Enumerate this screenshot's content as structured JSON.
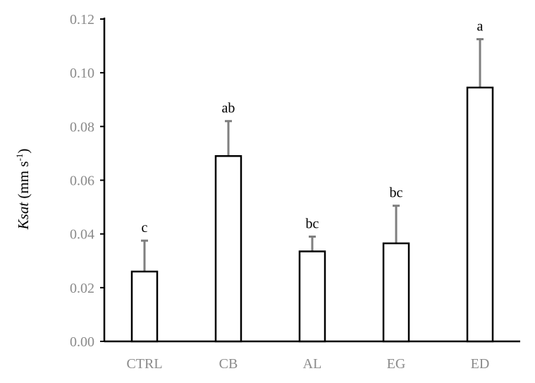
{
  "chart_data": {
    "type": "bar",
    "categories": [
      "CTRL",
      "CB",
      "AL",
      "EG",
      "ED"
    ],
    "values": [
      0.026,
      0.069,
      0.0335,
      0.0365,
      0.0945
    ],
    "error_upper": [
      0.0375,
      0.082,
      0.039,
      0.0505,
      0.1125
    ],
    "significance": [
      "c",
      "ab",
      "bc",
      "bc",
      "a"
    ],
    "ylabel": {
      "italic": "Ksat",
      "unit_prefix": " (mm s",
      "unit_sup": "-1",
      "unit_suffix": ")"
    },
    "ylim": [
      0,
      0.12
    ],
    "yticks": [
      "0.00",
      "0.02",
      "0.04",
      "0.06",
      "0.08",
      "0.10",
      "0.12"
    ],
    "grid": false,
    "colors": {
      "bar_fill": "#ffffff",
      "bar_stroke": "#000000",
      "error_bar": "#7f7f7f",
      "tick_text": "#8a8a8a"
    }
  }
}
